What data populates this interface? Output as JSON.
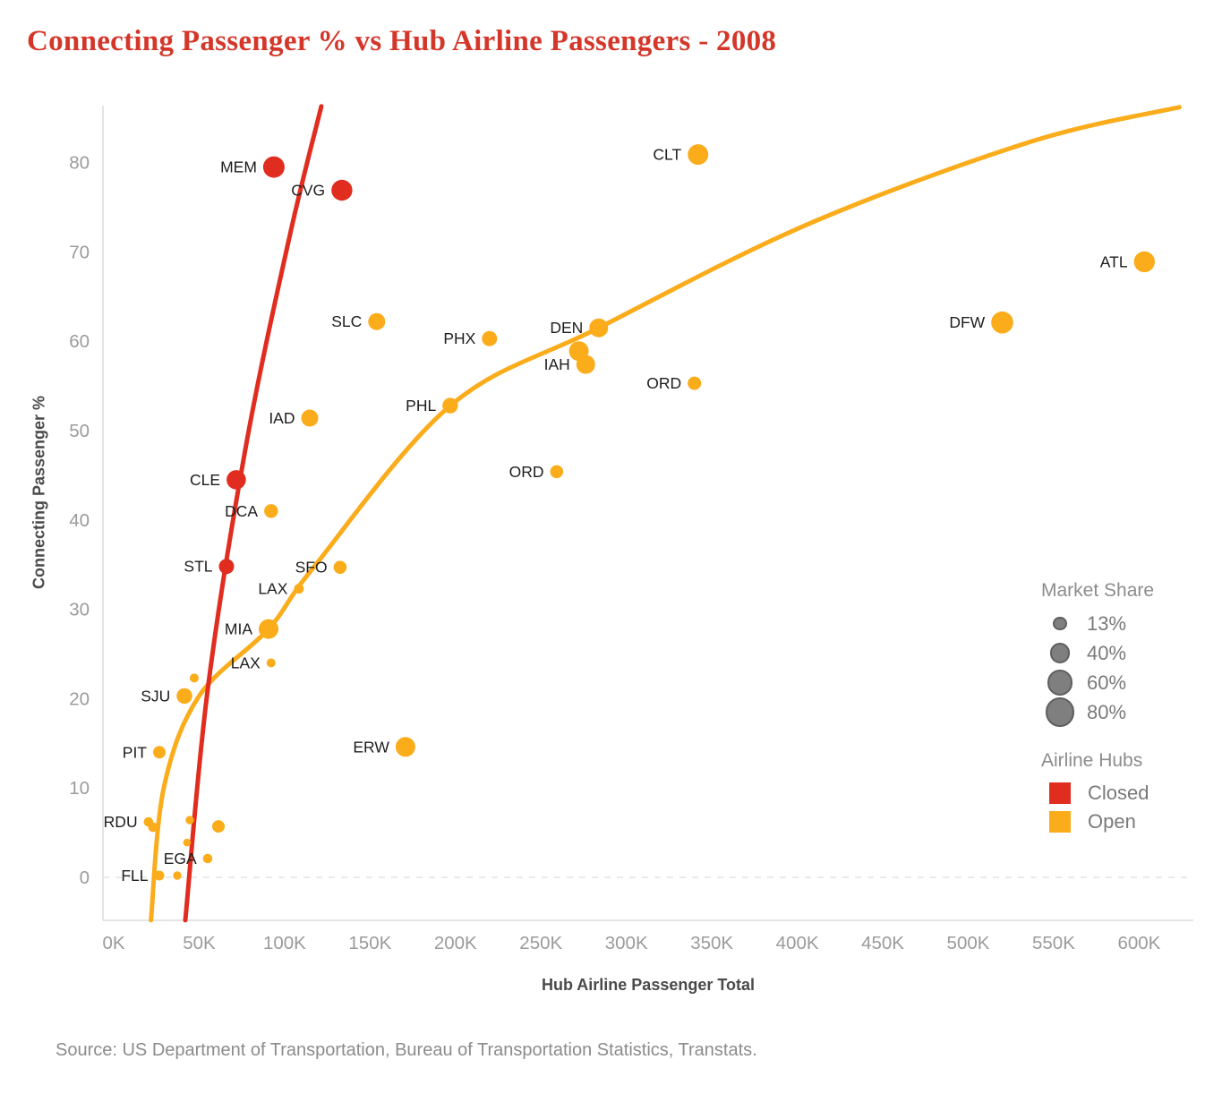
{
  "title": "Connecting Passenger % vs Hub Airline Passengers - 2008",
  "source": "Source: US Department of Transportation, Bureau of Transportation Statistics, Transtats.",
  "colors": {
    "closed": "#e02d1f",
    "open": "#faac1b",
    "title_red": "#d4372a",
    "legend_bubble": "#7f7f7f",
    "tick_gray": "#9b9b9b",
    "axis_gray": "#dcdcdc"
  },
  "chart_data": {
    "type": "scatter",
    "title": "Connecting Passenger % vs Hub Airline Passengers - 2008",
    "xlabel": "Hub Airline Passenger Total",
    "ylabel": "Connecting Passenger %",
    "x_unit": "thousands of passengers",
    "xlim": [
      0,
      630
    ],
    "ylim": [
      -5,
      87
    ],
    "grid": "dashed line at y=0 only",
    "legend_position": "right",
    "x_ticks": {
      "labels": [
        "0K",
        "50K",
        "100K",
        "150K",
        "200K",
        "250K",
        "300K",
        "350K",
        "400K",
        "450K",
        "500K",
        "550K",
        "600K"
      ],
      "values": [
        0,
        50,
        100,
        150,
        200,
        250,
        300,
        350,
        400,
        450,
        500,
        550,
        600
      ]
    },
    "y_ticks": {
      "labels": [
        "0",
        "10",
        "20",
        "30",
        "40",
        "50",
        "60",
        "70",
        "80"
      ],
      "values": [
        0,
        10,
        20,
        30,
        40,
        50,
        60,
        70,
        80
      ]
    },
    "series": [
      {
        "name": "Closed",
        "color": "#e02d1f",
        "points": [
          {
            "code": "MEM",
            "x": 93.7,
            "y": 79.5,
            "r": 12
          },
          {
            "code": "CVG",
            "x": 133.5,
            "y": 76.9,
            "r": 11.7
          },
          {
            "code": "CLE",
            "x": 71.7,
            "y": 44.5,
            "r": 10.8
          },
          {
            "code": "STL",
            "x": 66.0,
            "y": 34.8,
            "r": 8.5
          }
        ]
      },
      {
        "name": "Open",
        "color": "#faac1b",
        "points": [
          {
            "code": "CLT",
            "x": 341.9,
            "y": 80.9,
            "r": 11.5
          },
          {
            "code": "ATL",
            "x": 603.1,
            "y": 68.9,
            "r": 11.7
          },
          {
            "code": "DFW",
            "x": 519.9,
            "y": 62.1,
            "r": 12.3
          },
          {
            "code": "SLC",
            "x": 153.9,
            "y": 62.2,
            "r": 9.5
          },
          {
            "code": "PHX",
            "x": 219.9,
            "y": 60.3,
            "r": 8.5
          },
          {
            "code": "DEN",
            "x": 283.8,
            "y": 61.5,
            "r": 10.5
          },
          {
            "code": "",
            "x": 272.2,
            "y": 58.9,
            "r": 11
          },
          {
            "code": "IAH",
            "x": 276.2,
            "y": 57.4,
            "r": 10.5
          },
          {
            "code": "ORD",
            "x": 339.8,
            "y": 55.3,
            "r": 7.5
          },
          {
            "code": "PHL",
            "x": 196.9,
            "y": 52.8,
            "r": 8.7
          },
          {
            "code": "IAD",
            "x": 114.7,
            "y": 51.4,
            "r": 9.5
          },
          {
            "code": "ORD",
            "x": 259.2,
            "y": 45.4,
            "r": 7.3
          },
          {
            "code": "DCA",
            "x": 92.1,
            "y": 41.0,
            "r": 7.7
          },
          {
            "code": "SFO",
            "x": 132.5,
            "y": 34.7,
            "r": 7.3
          },
          {
            "code": "LAX",
            "x": 108.4,
            "y": 32.3,
            "r": 5.5
          },
          {
            "code": "MIA",
            "x": 90.6,
            "y": 27.8,
            "r": 11
          },
          {
            "code": "LAX",
            "x": 92.1,
            "y": 24.0,
            "r": 5
          },
          {
            "code": "",
            "x": 47.1,
            "y": 22.3,
            "r": 5
          },
          {
            "code": "SJU",
            "x": 41.4,
            "y": 20.3,
            "r": 8.7
          },
          {
            "code": "PIT",
            "x": 26.7,
            "y": 14.0,
            "r": 7
          },
          {
            "code": "ERW",
            "x": 170.7,
            "y": 14.6,
            "r": 11
          },
          {
            "code": "RDU",
            "x": 20.4,
            "y": 6.2,
            "r": 5.3
          },
          {
            "code": "",
            "x": 23.0,
            "y": 5.6,
            "r": 5.3
          },
          {
            "code": "",
            "x": 44.5,
            "y": 6.4,
            "r": 4.7
          },
          {
            "code": "",
            "x": 61.3,
            "y": 5.7,
            "r": 7
          },
          {
            "code": "",
            "x": 42.9,
            "y": 3.9,
            "r": 4.3
          },
          {
            "code": "EGA",
            "x": 55.0,
            "y": 2.1,
            "r": 5.3
          },
          {
            "code": "FLL",
            "x": 26.7,
            "y": 0.2,
            "r": 5.5
          },
          {
            "code": "",
            "x": 37.2,
            "y": 0.2,
            "r": 4.7
          }
        ]
      }
    ],
    "trendlines": [
      {
        "name": "open-fit",
        "color": "#faac1b",
        "points": [
          [
            21.8,
            -4.8
          ],
          [
            29.3,
            10
          ],
          [
            50,
            20.3
          ],
          [
            90.6,
            27.8
          ],
          [
            117,
            34.7
          ],
          [
            197,
            52.8
          ],
          [
            283.8,
            61.5
          ],
          [
            405,
            73
          ],
          [
            536,
            82.3
          ],
          [
            623.6,
            86.2
          ]
        ]
      },
      {
        "name": "closed-fit",
        "color": "#e02d1f",
        "points": [
          [
            41.9,
            -4.8
          ],
          [
            55,
            21
          ],
          [
            77.5,
            48.4
          ],
          [
            103,
            71.8
          ],
          [
            121.5,
            86.3
          ]
        ]
      }
    ]
  },
  "legend": {
    "market_share": {
      "title": "Market Share",
      "items": [
        {
          "label": "13%",
          "r": 5.7
        },
        {
          "label": "40%",
          "r": 9.3
        },
        {
          "label": "60%",
          "r": 12.3
        },
        {
          "label": "80%",
          "r": 14.3
        }
      ]
    },
    "airline_hubs": {
      "title": "Airline Hubs",
      "items": [
        {
          "label": "Closed",
          "color": "#e02d1f"
        },
        {
          "label": "Open",
          "color": "#faac1b"
        }
      ]
    }
  }
}
